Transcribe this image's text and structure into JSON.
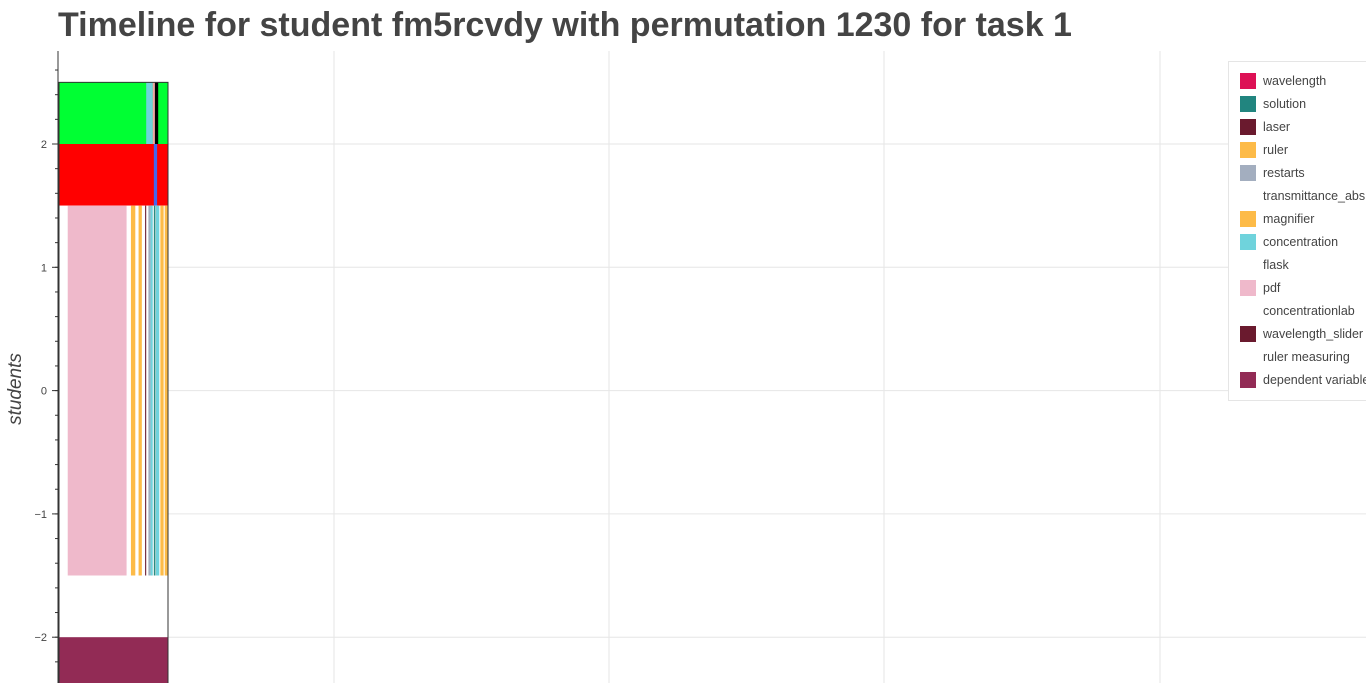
{
  "title": "Timeline for student fm5rcvdy with permutation 1230 for task 1",
  "chart_data": {
    "type": "timeline",
    "title": "Timeline for student fm5rcvdy with permutation 1230 for task 1",
    "ylabel": "students",
    "xlabel": "",
    "ylim": [
      -2.4,
      2.7
    ],
    "y_ticks": [
      -2,
      -1,
      0,
      1,
      2
    ],
    "y_tick_labels": [
      "−2",
      "−1",
      "0",
      "1",
      "2"
    ],
    "grid": true,
    "legend_placement": "top-right",
    "lanes": [
      {
        "y0": 2.0,
        "y1": 2.5,
        "base_color": "#00ff33",
        "segments": [
          {
            "start": 0.8,
            "end": 0.86,
            "color": "#6fd3dc"
          },
          {
            "start": 0.86,
            "end": 0.88,
            "color": "#f3a5a5"
          },
          {
            "start": 0.88,
            "end": 0.91,
            "color": "#000000"
          }
        ]
      },
      {
        "y0": 1.5,
        "y1": 2.0,
        "base_color": "#ff0000",
        "segments": [
          {
            "start": 0.87,
            "end": 0.9,
            "color": "#4466ee"
          }
        ]
      },
      {
        "y0": -1.5,
        "y1": 1.5,
        "base_color": "#ffffff",
        "segments": [
          {
            "start": 0.08,
            "end": 0.62,
            "color": "#efb9cb"
          },
          {
            "start": 0.66,
            "end": 0.7,
            "color": "#fdbb48"
          },
          {
            "start": 0.73,
            "end": 0.76,
            "color": "#fdbb48"
          },
          {
            "start": 0.79,
            "end": 0.8,
            "color": "#6a1a2e"
          },
          {
            "start": 0.82,
            "end": 0.84,
            "color": "#a3aebf"
          },
          {
            "start": 0.84,
            "end": 0.86,
            "color": "#6fd3dc"
          },
          {
            "start": 0.87,
            "end": 0.885,
            "color": "#2a8a80"
          },
          {
            "start": 0.89,
            "end": 0.92,
            "color": "#6fd3dc"
          },
          {
            "start": 0.93,
            "end": 0.96,
            "color": "#fdbb48"
          },
          {
            "start": 0.97,
            "end": 1.0,
            "color": "#fdbb48"
          }
        ]
      },
      {
        "y0": -2.0,
        "y1": -1.5,
        "base_color": "#ffffff",
        "segments": []
      },
      {
        "y0": -2.5,
        "y1": -2.0,
        "base_color": "#922b55",
        "segments": []
      }
    ],
    "legend": [
      {
        "label": "wavelength",
        "color": "#dd1155"
      },
      {
        "label": "solution",
        "color": "#21857f"
      },
      {
        "label": "laser",
        "color": "#6a1a2e"
      },
      {
        "label": "ruler",
        "color": "#fdbb48"
      },
      {
        "label": "restarts",
        "color": "#a3aebf"
      },
      {
        "label": "transmittance_abs",
        "color": "#ffffff"
      },
      {
        "label": "magnifier",
        "color": "#fdbb48"
      },
      {
        "label": "concentration",
        "color": "#6fd3dc"
      },
      {
        "label": "flask",
        "color": "#ffffff"
      },
      {
        "label": "pdf",
        "color": "#efb9cb"
      },
      {
        "label": "concentrationlab",
        "color": "#ffffff"
      },
      {
        "label": "wavelength_slider",
        "color": "#6a1a2e"
      },
      {
        "label": "ruler measuring",
        "color": "#ffffff"
      },
      {
        "label": "dependent variable",
        "color": "#922b55"
      }
    ]
  }
}
